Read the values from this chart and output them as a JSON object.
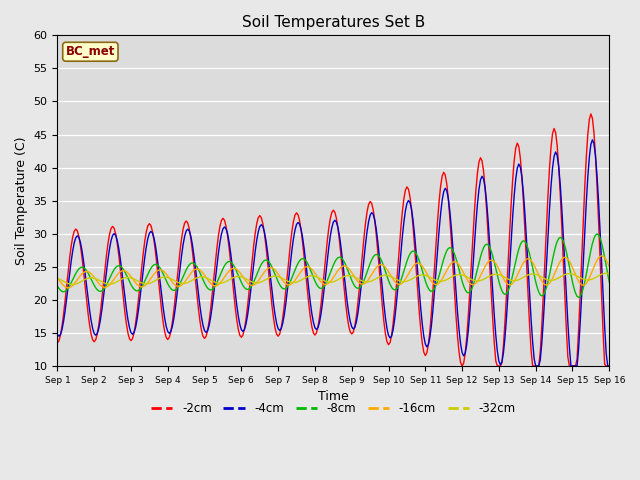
{
  "title": "Soil Temperatures Set B",
  "xlabel": "Time",
  "ylabel": "Soil Temperature (C)",
  "annotation": "BC_met",
  "ylim": [
    10,
    60
  ],
  "xlim": [
    0,
    360
  ],
  "fig_bg": "#e8e8e8",
  "plot_bg": "#dcdcdc",
  "colors": {
    "-2cm": "#ff0000",
    "-4cm": "#0000cc",
    "-8cm": "#00bb00",
    "-16cm": "#ffaa00",
    "-32cm": "#cccc00"
  },
  "tick_labels": [
    "Sep 1",
    "Sep 2",
    "Sep 3",
    "Sep 4",
    "Sep 5",
    "Sep 6",
    "Sep 7",
    "Sep 8",
    "Sep 9",
    "Sep 10",
    "Sep 11",
    "Sep 12",
    "Sep 13",
    "Sep 14",
    "Sep 15",
    "Sep 16"
  ],
  "tick_positions": [
    0,
    24,
    48,
    72,
    96,
    120,
    144,
    168,
    192,
    216,
    240,
    264,
    288,
    312,
    336,
    360
  ],
  "yticks": [
    10,
    15,
    20,
    25,
    30,
    35,
    40,
    45,
    50,
    55,
    60
  ]
}
